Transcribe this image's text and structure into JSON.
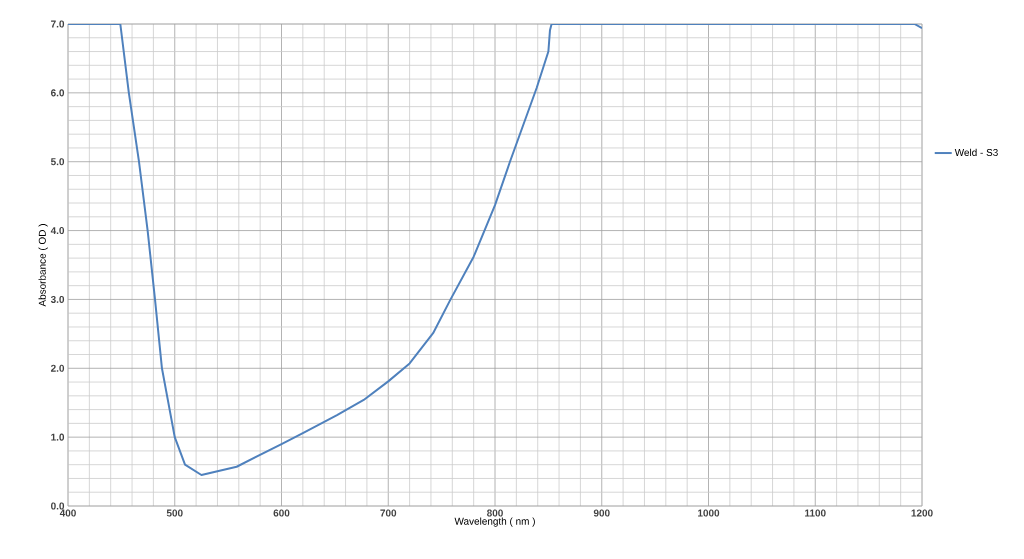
{
  "chart_data": {
    "type": "line",
    "xlabel": "Wavelength ( nm )",
    "ylabel": "Absorbance ( OD )",
    "series": [
      {
        "name": "Weld - S3",
        "color": "#4f81bd",
        "x": [
          400,
          449,
          457,
          466.5,
          474.6,
          481.5,
          488,
          500,
          509.6,
          525,
          558,
          600,
          620,
          652,
          677,
          700,
          720,
          742,
          758,
          780,
          800,
          814,
          839,
          850,
          851.5,
          853,
          1193,
          1200
        ],
        "values": [
          7.0,
          7.0,
          6.0,
          5.0,
          4.0,
          3.0,
          2.0,
          1.0,
          0.6,
          0.45,
          0.57,
          0.9,
          1.06,
          1.32,
          1.54,
          1.81,
          2.07,
          2.51,
          2.99,
          3.62,
          4.37,
          5.0,
          6.07,
          6.6,
          6.91,
          7.0,
          7.0,
          6.94
        ]
      }
    ],
    "xlim": [
      400,
      1200
    ],
    "xticks": [
      400,
      500,
      600,
      700,
      800,
      900,
      1000,
      1100,
      1200
    ],
    "ylim": [
      0,
      7
    ],
    "yticks": [
      {
        "value": 0,
        "label": "0.0"
      },
      {
        "value": 1,
        "label": "1.0"
      },
      {
        "value": 2,
        "label": "2.0"
      },
      {
        "value": 3,
        "label": "3.0"
      },
      {
        "value": 4,
        "label": "4.0"
      },
      {
        "value": 5,
        "label": "5.0"
      },
      {
        "value": 6,
        "label": "6.0"
      },
      {
        "value": 7,
        "label": "7.0"
      }
    ],
    "grid": true,
    "legend": "right",
    "marker": "none",
    "line_style": "solid"
  }
}
